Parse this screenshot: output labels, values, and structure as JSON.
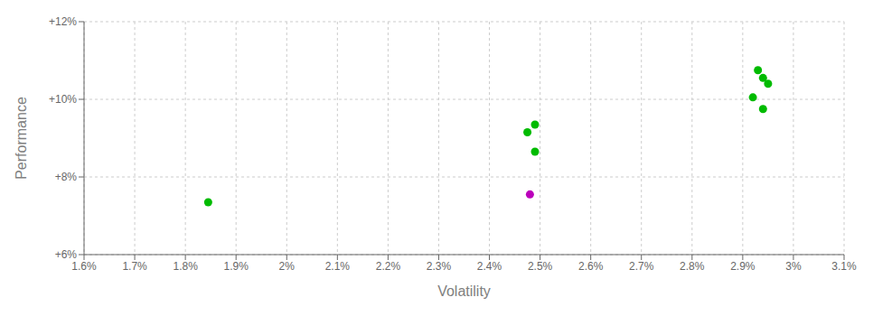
{
  "chart_data": {
    "type": "scatter",
    "xlabel": "Volatility",
    "ylabel": "Performance",
    "xlim": [
      0.016,
      0.031
    ],
    "ylim": [
      0.06,
      0.12
    ],
    "xticks": [
      {
        "value": 0.016,
        "label": "1.6%"
      },
      {
        "value": 0.017,
        "label": "1.7%"
      },
      {
        "value": 0.018,
        "label": "1.8%"
      },
      {
        "value": 0.019,
        "label": "1.9%"
      },
      {
        "value": 0.02,
        "label": "2%"
      },
      {
        "value": 0.021,
        "label": "2.1%"
      },
      {
        "value": 0.022,
        "label": "2.2%"
      },
      {
        "value": 0.023,
        "label": "2.3%"
      },
      {
        "value": 0.024,
        "label": "2.4%"
      },
      {
        "value": 0.025,
        "label": "2.5%"
      },
      {
        "value": 0.026,
        "label": "2.6%"
      },
      {
        "value": 0.027,
        "label": "2.7%"
      },
      {
        "value": 0.028,
        "label": "2.8%"
      },
      {
        "value": 0.029,
        "label": "2.9%"
      },
      {
        "value": 0.03,
        "label": "3%"
      },
      {
        "value": 0.031,
        "label": "3.1%"
      }
    ],
    "yticks": [
      {
        "value": 0.06,
        "label": "+6%"
      },
      {
        "value": 0.08,
        "label": "+8%"
      },
      {
        "value": 0.1,
        "label": "+10%"
      },
      {
        "value": 0.12,
        "label": "+12%"
      }
    ],
    "grid": true,
    "series": [
      {
        "color": "#00bb00",
        "x": [
          0.01845,
          0.02475,
          0.0249,
          0.0249,
          0.0292,
          0.0294,
          0.0293,
          0.0294,
          0.0295
        ],
        "values": [
          0.0735,
          0.0915,
          0.0935,
          0.0865,
          0.1005,
          0.0975,
          0.1075,
          0.1055,
          0.104
        ]
      },
      {
        "color": "#bb00bb",
        "x": [
          0.0248
        ],
        "values": [
          0.0755
        ]
      }
    ]
  }
}
